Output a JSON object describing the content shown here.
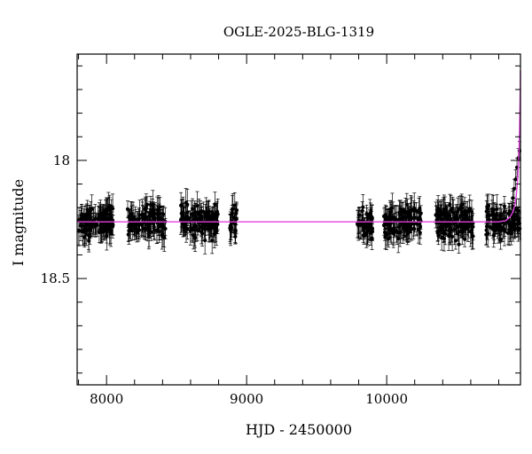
{
  "chart_data": {
    "type": "scatter",
    "title": "OGLE-2025-BLG-1319",
    "xlabel": "HJD - 2450000",
    "ylabel": "I magnitude",
    "xlim": [
      7790,
      10955
    ],
    "ylim": [
      18.95,
      17.55
    ],
    "y_inverted": true,
    "x_ticks": [
      8000,
      9000,
      10000
    ],
    "y_ticks": [
      18,
      18.5
    ],
    "grid": false,
    "legend": "none",
    "colors": {
      "points": "#000000",
      "model": "#e040e0"
    },
    "baseline_magnitude": 18.26,
    "observing_seasons": [
      {
        "x_start": 7800,
        "x_end": 8050,
        "mean_mag": 18.26,
        "scatter": 0.06,
        "error": 0.05
      },
      {
        "x_start": 8150,
        "x_end": 8420,
        "mean_mag": 18.26,
        "scatter": 0.06,
        "error": 0.05
      },
      {
        "x_start": 8530,
        "x_end": 8800,
        "mean_mag": 18.26,
        "scatter": 0.06,
        "error": 0.05
      },
      {
        "x_start": 8880,
        "x_end": 8930,
        "mean_mag": 18.26,
        "scatter": 0.06,
        "error": 0.05
      },
      {
        "x_start": 9790,
        "x_end": 9900,
        "mean_mag": 18.26,
        "scatter": 0.06,
        "error": 0.05
      },
      {
        "x_start": 9980,
        "x_end": 10250,
        "mean_mag": 18.26,
        "scatter": 0.06,
        "error": 0.05
      },
      {
        "x_start": 10350,
        "x_end": 10620,
        "mean_mag": 18.26,
        "scatter": 0.06,
        "error": 0.05
      },
      {
        "x_start": 10710,
        "x_end": 10950,
        "mean_mag": 18.26,
        "scatter": 0.06,
        "error": 0.05
      }
    ],
    "rise_points": [
      {
        "x": 10900,
        "y": 18.16
      },
      {
        "x": 10910,
        "y": 18.12
      },
      {
        "x": 10920,
        "y": 18.08
      },
      {
        "x": 10930,
        "y": 18.03
      },
      {
        "x": 10940,
        "y": 17.99
      },
      {
        "x": 10948,
        "y": 17.96
      }
    ],
    "model_curve": {
      "x": [
        7790,
        8500,
        9500,
        10500,
        10800,
        10850,
        10880,
        10900,
        10915,
        10925,
        10935,
        10942,
        10948,
        10952,
        10955
      ],
      "y": [
        18.26,
        18.26,
        18.26,
        18.26,
        18.26,
        18.255,
        18.24,
        18.22,
        18.19,
        18.15,
        18.08,
        18.0,
        17.88,
        17.75,
        17.62
      ]
    }
  }
}
